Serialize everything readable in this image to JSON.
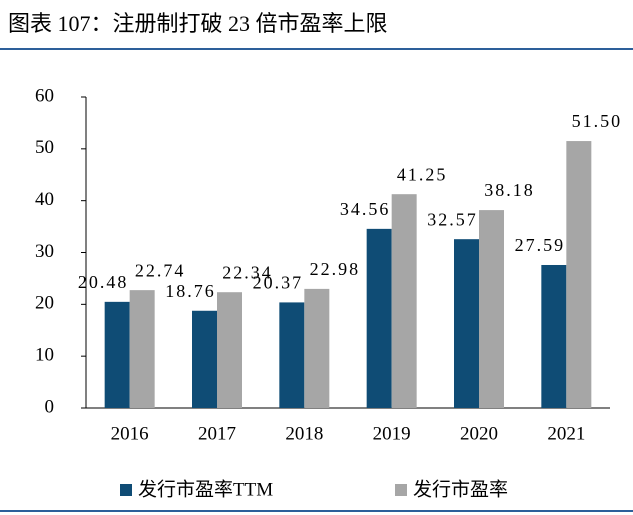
{
  "chart_data": {
    "type": "bar",
    "title": "图表 107：注册制打破 23 倍市盈率上限",
    "categories": [
      "2016",
      "2017",
      "2018",
      "2019",
      "2020",
      "2021"
    ],
    "series": [
      {
        "name": "发行市盈率TTM",
        "color": "#0f4c75",
        "values": [
          20.48,
          18.76,
          20.37,
          34.56,
          32.57,
          27.59
        ],
        "value_labels": [
          "20.48",
          "18.76",
          "20.37",
          "34.56",
          "32.57",
          "27.59"
        ]
      },
      {
        "name": "发行市盈率",
        "color": "#a6a6a6",
        "values": [
          22.74,
          22.34,
          22.98,
          41.25,
          38.18,
          51.5
        ],
        "value_labels": [
          "22.74",
          "22.34",
          "22.98",
          "41.25",
          "38.18",
          "51.50"
        ]
      }
    ],
    "ylim": [
      0,
      60
    ],
    "yticks": [
      0,
      10,
      20,
      30,
      40,
      50,
      60
    ],
    "legend": "bottom"
  }
}
